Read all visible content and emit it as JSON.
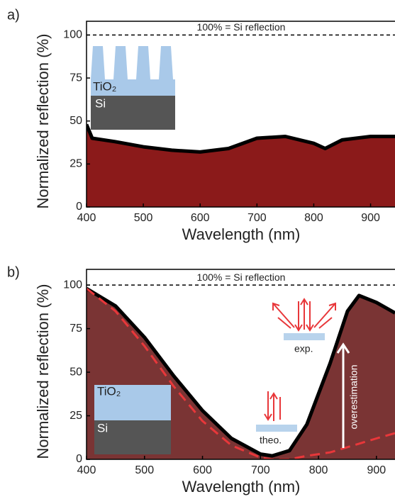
{
  "chart_data": [
    {
      "type": "area",
      "panel_label": "a)",
      "xlabel": "Wavelength (nm)",
      "ylabel": "Normalized reflection (%)",
      "x": [
        400,
        410,
        450,
        500,
        550,
        600,
        650,
        700,
        750,
        800,
        820,
        850,
        900,
        943
      ],
      "series": [
        {
          "color": "#000000",
          "fill": "#8b1a1a",
          "dash": false,
          "values": [
            48,
            40,
            38,
            35,
            33,
            32,
            34,
            40,
            41,
            37,
            34,
            39,
            41,
            41
          ]
        }
      ],
      "xlim": [
        400,
        943
      ],
      "ylim": [
        0,
        108
      ],
      "xticks": [
        400,
        500,
        600,
        700,
        800,
        900
      ],
      "yticks": [
        0,
        25,
        50,
        75,
        100
      ],
      "reference_line": 100,
      "reference_label": "100% = Si reflection",
      "inset_labels": [
        "TiO₂",
        "Si"
      ],
      "annotations": []
    },
    {
      "type": "area",
      "panel_label": "b)",
      "xlabel": "Wavelength (nm)",
      "ylabel": "Normalized reflection (%)",
      "x": [
        400,
        450,
        500,
        550,
        600,
        650,
        700,
        720,
        750,
        780,
        820,
        850,
        870,
        900,
        932
      ],
      "series": [
        {
          "color": "#000000",
          "fill": "#7a3434",
          "dash": false,
          "values": [
            98,
            88,
            70,
            48,
            28,
            12,
            3,
            2,
            5,
            20,
            55,
            85,
            94,
            90,
            84
          ]
        },
        {
          "color": "#e8373a",
          "fill": null,
          "dash": true,
          "values": [
            98,
            85,
            65,
            42,
            22,
            8,
            1,
            0,
            0,
            2,
            4,
            7,
            9,
            12,
            15
          ]
        }
      ],
      "xlim": [
        400,
        932
      ],
      "ylim": [
        0,
        109
      ],
      "xticks": [
        400,
        500,
        600,
        700,
        800,
        900
      ],
      "yticks": [
        0,
        25,
        50,
        75,
        100
      ],
      "reference_line": 100,
      "reference_label": "100% = Si reflection",
      "inset_labels": [
        "TiO₂",
        "Si"
      ],
      "annotations": [
        "exp.",
        "theo.",
        "overestimation"
      ]
    }
  ]
}
